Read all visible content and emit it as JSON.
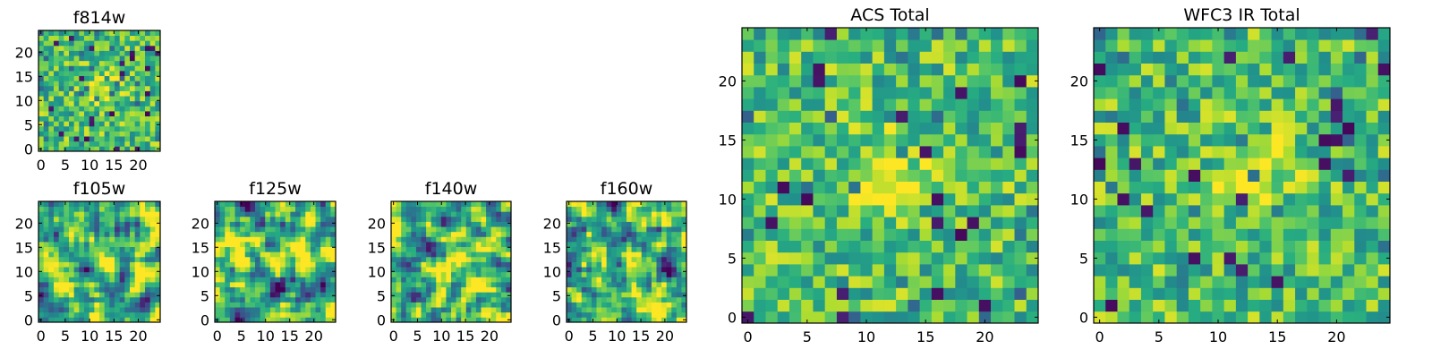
{
  "chart_data": [
    {
      "type": "heatmap",
      "title": "f814w",
      "grid": [
        24,
        24
      ],
      "xlim": [
        0,
        24
      ],
      "ylim": [
        0,
        24
      ],
      "xticks": [
        "0",
        "5",
        "10",
        "15",
        "20"
      ],
      "yticks": [
        "0",
        "5",
        "10",
        "15",
        "20"
      ],
      "colormap": "viridis",
      "peak": [
        12,
        12
      ],
      "description": "noisy pixel map with central bright source"
    },
    {
      "type": "heatmap",
      "title": "f105w",
      "grid": [
        24,
        24
      ],
      "xlim": [
        0,
        24
      ],
      "ylim": [
        0,
        24
      ],
      "xticks": [
        "0",
        "5",
        "10",
        "15",
        "20"
      ],
      "yticks": [
        "0",
        "5",
        "10",
        "15",
        "20"
      ],
      "colormap": "viridis",
      "peak": [
        12,
        11
      ],
      "description": "smoothed noise map"
    },
    {
      "type": "heatmap",
      "title": "f125w",
      "grid": [
        24,
        24
      ],
      "xlim": [
        0,
        24
      ],
      "ylim": [
        0,
        24
      ],
      "xticks": [
        "0",
        "5",
        "10",
        "15",
        "20"
      ],
      "yticks": [
        "0",
        "5",
        "10",
        "15",
        "20"
      ],
      "colormap": "viridis",
      "peak": [
        12,
        12
      ],
      "description": "smoothed noise map"
    },
    {
      "type": "heatmap",
      "title": "f140w",
      "grid": [
        24,
        24
      ],
      "xlim": [
        0,
        24
      ],
      "ylim": [
        0,
        24
      ],
      "xticks": [
        "0",
        "5",
        "10",
        "15",
        "20"
      ],
      "yticks": [
        "0",
        "5",
        "10",
        "15",
        "20"
      ],
      "colormap": "viridis",
      "peak": [
        11,
        12
      ],
      "description": "smoothed noise map"
    },
    {
      "type": "heatmap",
      "title": "f160w",
      "grid": [
        24,
        24
      ],
      "xlim": [
        0,
        24
      ],
      "ylim": [
        0,
        24
      ],
      "xticks": [
        "0",
        "5",
        "10",
        "15",
        "20"
      ],
      "yticks": [
        "0",
        "5",
        "10",
        "15",
        "20"
      ],
      "colormap": "viridis",
      "peak": [
        13,
        12
      ],
      "description": "smoothed noise map"
    },
    {
      "type": "heatmap",
      "title": "ACS Total",
      "grid": [
        25,
        25
      ],
      "xlim": [
        0,
        24
      ],
      "ylim": [
        0,
        24
      ],
      "xticks": [
        "0",
        "5",
        "10",
        "15",
        "20"
      ],
      "yticks": [
        "0",
        "5",
        "10",
        "15",
        "20"
      ],
      "colormap": "viridis",
      "peak": [
        12,
        12
      ],
      "description": "coarse pixel map with central bright source"
    },
    {
      "type": "heatmap",
      "title": "WFC3 IR Total",
      "grid": [
        25,
        25
      ],
      "xlim": [
        0,
        24
      ],
      "ylim": [
        0,
        24
      ],
      "xticks": [
        "0",
        "5",
        "10",
        "15",
        "20"
      ],
      "yticks": [
        "0",
        "5",
        "10",
        "15",
        "20"
      ],
      "colormap": "viridis",
      "peak": [
        13,
        12
      ],
      "description": "coarse pixel map with central bright source"
    }
  ]
}
